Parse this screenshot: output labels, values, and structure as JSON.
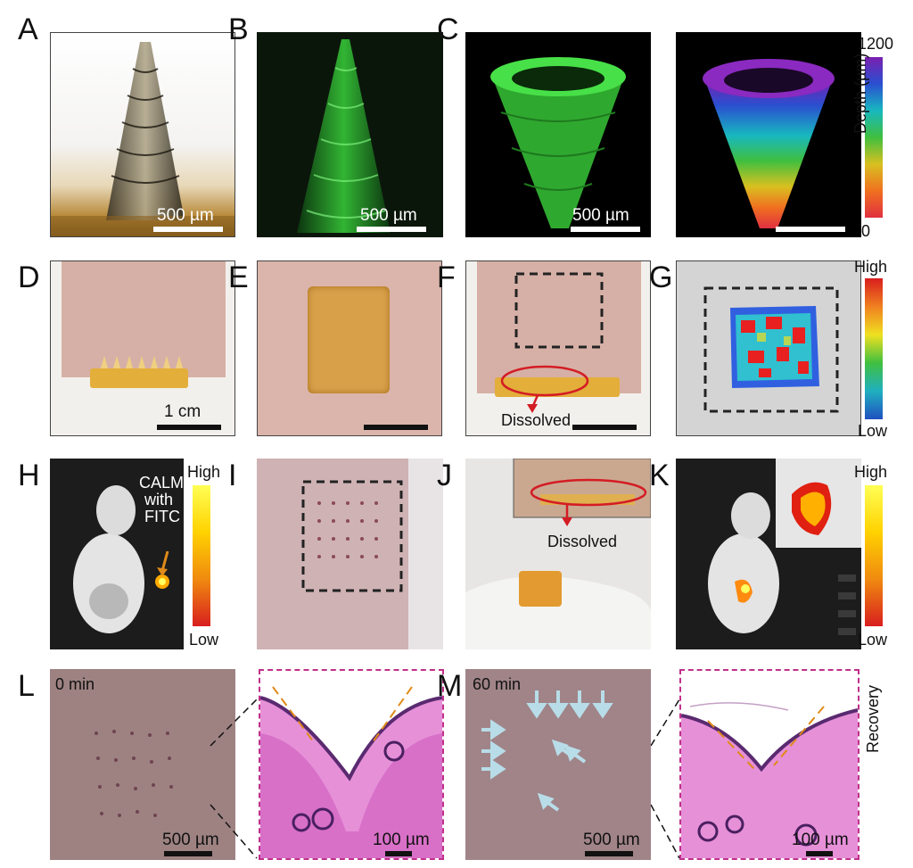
{
  "panels": {
    "A": {
      "letter": "A",
      "scalebar": "500 µm"
    },
    "B": {
      "letter": "B",
      "scalebar": "500 µm"
    },
    "C": {
      "letter": "C",
      "scalebar": "500 µm",
      "colorbar": {
        "max": "1200",
        "min": "0",
        "title": "Depth (µm)"
      }
    },
    "D": {
      "letter": "D",
      "scalebar": "1 cm"
    },
    "E": {
      "letter": "E"
    },
    "F": {
      "letter": "F",
      "label": "Dissolved"
    },
    "G": {
      "letter": "G",
      "colorbar": {
        "high": "High",
        "low": "Low"
      }
    },
    "H": {
      "letter": "H",
      "label_lines": [
        "CALM",
        "with",
        "FITC"
      ],
      "colorbar": {
        "high": "High",
        "low": "Low"
      }
    },
    "I": {
      "letter": "I"
    },
    "J": {
      "letter": "J",
      "label": "Dissolved"
    },
    "K": {
      "letter": "K",
      "colorbar": {
        "high": "High",
        "low": "Low"
      }
    },
    "L": {
      "letter": "L",
      "time": "0 min",
      "scalebar": "500 µm",
      "scalebar_zoom": "100 µm"
    },
    "M": {
      "letter": "M",
      "time": "60 min",
      "scalebar": "500 µm",
      "scalebar_zoom": "100 µm",
      "side_label": "Recovery"
    }
  },
  "colors": {
    "fluorescence_green": "#39d13a",
    "depth_gradient": [
      "#7a1fb0",
      "#2a4fd0",
      "#18b8c0",
      "#3fbf3f",
      "#d8c020",
      "#f07020",
      "#e03040"
    ],
    "heat_gradient": [
      "#d81e1e",
      "#ffd200",
      "#ffff55"
    ],
    "he_stain": "#d870c8",
    "arrow_orange": "#e08a1a",
    "circle_red": "#d41c24",
    "arrow_lightblue": "#b8dde8",
    "zoom_box_magenta": "#c0308a"
  }
}
